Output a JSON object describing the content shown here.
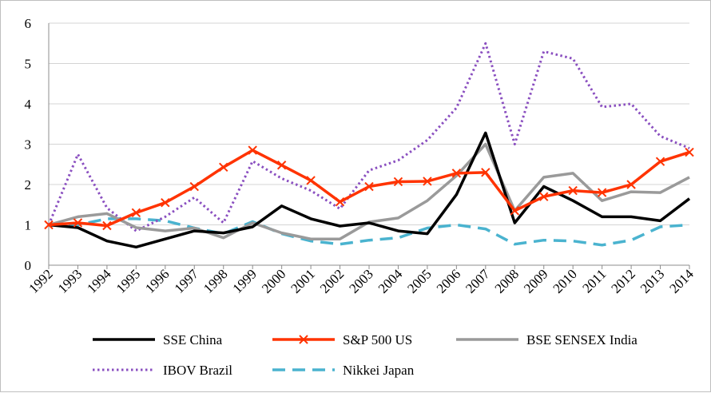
{
  "chart_data": {
    "type": "line",
    "title": "",
    "xlabel": "",
    "ylabel": "",
    "x": [
      "1992",
      "1993",
      "1994",
      "1995",
      "1996",
      "1997",
      "1998",
      "1999",
      "2000",
      "2001",
      "2002",
      "2003",
      "2004",
      "2005",
      "2006",
      "2007",
      "2008",
      "2009",
      "2010",
      "2011",
      "2012",
      "2013",
      "2014"
    ],
    "ylim": [
      0,
      6
    ],
    "yticks": [
      "0",
      "1",
      "2",
      "3",
      "4",
      "5",
      "6"
    ],
    "grid": "horizontal",
    "legend_position": "bottom",
    "series": [
      {
        "name": "SSE China",
        "color": "#000000",
        "style": "solid",
        "marker": "none",
        "values": [
          1.0,
          0.93,
          0.6,
          0.45,
          0.65,
          0.85,
          0.8,
          0.95,
          1.47,
          1.15,
          0.97,
          1.05,
          0.85,
          0.78,
          1.75,
          3.28,
          1.05,
          1.95,
          1.6,
          1.2,
          1.2,
          1.1,
          1.65
        ]
      },
      {
        "name": "S&P 500 US",
        "color": "#ff3300",
        "style": "solid",
        "marker": "x",
        "values": [
          1.0,
          1.05,
          0.98,
          1.3,
          1.55,
          1.95,
          2.43,
          2.85,
          2.48,
          2.1,
          1.57,
          1.95,
          2.07,
          2.08,
          2.28,
          2.3,
          1.35,
          1.7,
          1.85,
          1.8,
          2.0,
          2.57,
          2.8
        ]
      },
      {
        "name": "BSE SENSEX India",
        "color": "#9a9a9a",
        "style": "solid",
        "marker": "none",
        "values": [
          1.0,
          1.2,
          1.28,
          0.93,
          0.85,
          0.92,
          0.68,
          1.05,
          0.8,
          0.65,
          0.65,
          1.07,
          1.17,
          1.6,
          2.22,
          3.0,
          1.35,
          2.18,
          2.28,
          1.6,
          1.82,
          1.8,
          2.18
        ]
      },
      {
        "name": "IBOV Brazil",
        "color": "#8a4fc0",
        "style": "dotted",
        "marker": "none",
        "values": [
          1.0,
          2.75,
          1.42,
          0.85,
          1.2,
          1.68,
          1.05,
          2.58,
          2.15,
          1.85,
          1.4,
          2.35,
          2.6,
          3.1,
          3.9,
          5.5,
          3.0,
          5.3,
          5.12,
          3.92,
          4.0,
          3.2,
          2.9
        ]
      },
      {
        "name": "Nikkei Japan",
        "color": "#4ab3cf",
        "style": "dashed",
        "marker": "none",
        "values": [
          1.0,
          1.0,
          1.15,
          1.15,
          1.1,
          0.92,
          0.78,
          1.08,
          0.78,
          0.6,
          0.52,
          0.62,
          0.68,
          0.92,
          1.0,
          0.9,
          0.52,
          0.62,
          0.6,
          0.5,
          0.62,
          0.95,
          1.0
        ]
      }
    ]
  }
}
